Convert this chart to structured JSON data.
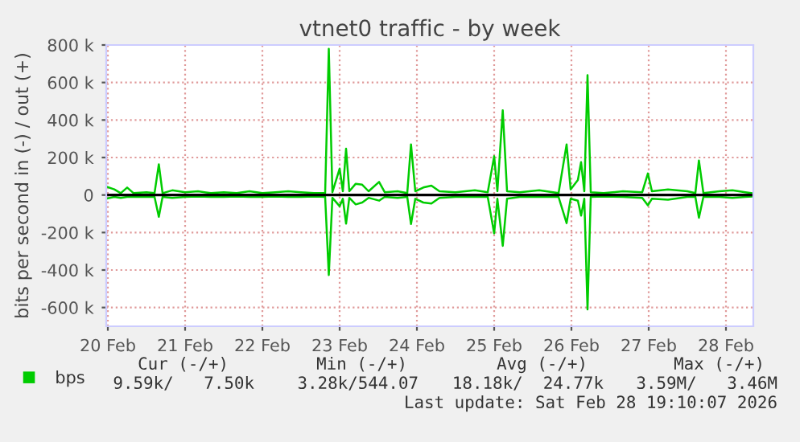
{
  "chart_data": {
    "type": "line",
    "title": "vtnet0 traffic - by week",
    "ylabel": "bits per second in (-) / out (+)",
    "x": [
      "2026-02-19T23:30",
      "2026-02-20T02:00",
      "2026-02-20T04:00",
      "2026-02-20T06:00",
      "2026-02-20T08:00",
      "2026-02-20T12:00",
      "2026-02-20T14:30",
      "2026-02-20T15:50",
      "2026-02-20T17:00",
      "2026-02-20T20:00",
      "2026-02-21T00:00",
      "2026-02-21T04:00",
      "2026-02-21T08:00",
      "2026-02-21T12:00",
      "2026-02-21T16:00",
      "2026-02-21T20:00",
      "2026-02-22T00:00",
      "2026-02-22T04:00",
      "2026-02-22T08:00",
      "2026-02-22T12:00",
      "2026-02-22T16:00",
      "2026-02-22T19:30",
      "2026-02-22T20:38",
      "2026-02-22T21:45",
      "2026-02-23T00:00",
      "2026-02-23T01:00",
      "2026-02-23T02:00",
      "2026-02-23T03:00",
      "2026-02-23T05:00",
      "2026-02-23T07:00",
      "2026-02-23T09:00",
      "2026-02-23T12:15",
      "2026-02-23T14:00",
      "2026-02-23T18:00",
      "2026-02-23T21:00",
      "2026-02-23T22:10",
      "2026-02-23T23:30",
      "2026-02-24T02:00",
      "2026-02-24T04:30",
      "2026-02-24T07:00",
      "2026-02-24T12:00",
      "2026-02-24T18:00",
      "2026-02-24T22:00",
      "2026-02-25T00:00",
      "2026-02-25T01:00",
      "2026-02-25T02:40",
      "2026-02-25T04:00",
      "2026-02-25T08:00",
      "2026-02-25T14:00",
      "2026-02-25T20:00",
      "2026-02-25T22:30",
      "2026-02-25T23:45",
      "2026-02-26T02:00",
      "2026-02-26T03:00",
      "2026-02-26T04:00",
      "2026-02-26T05:00",
      "2026-02-26T06:00",
      "2026-02-26T10:00",
      "2026-02-26T16:00",
      "2026-02-26T22:00",
      "2026-02-26T23:45",
      "2026-02-27T01:00",
      "2026-02-27T06:00",
      "2026-02-27T12:00",
      "2026-02-27T14:30",
      "2026-02-27T15:36",
      "2026-02-27T17:00",
      "2026-02-27T22:00",
      "2026-02-28T02:00",
      "2026-02-28T06:00",
      "2026-02-28T08:00"
    ],
    "series": [
      {
        "name": "bps",
        "color": "#00cc00",
        "values": [
          45000,
          30000,
          10000,
          40000,
          10000,
          15000,
          10000,
          164000,
          10000,
          25000,
          15000,
          20000,
          10000,
          15000,
          10000,
          20000,
          10000,
          15000,
          20000,
          15000,
          10000,
          10000,
          780000,
          15000,
          141000,
          20000,
          247000,
          20000,
          60000,
          55000,
          20000,
          70000,
          15000,
          20000,
          10000,
          270000,
          20000,
          40000,
          50000,
          20000,
          15000,
          25000,
          15000,
          207000,
          20000,
          452000,
          20000,
          15000,
          25000,
          10000,
          270000,
          30000,
          80000,
          175000,
          20000,
          639000,
          15000,
          10000,
          20000,
          15000,
          115000,
          20000,
          30000,
          20000,
          10000,
          184000,
          10000,
          20000,
          25000,
          15000,
          10000
        ]
      },
      {
        "color": "#00cc00",
        "values": [
          -20000,
          -10000,
          -15000,
          -10000,
          -10000,
          -10000,
          -10000,
          -116000,
          -10000,
          -15000,
          -10000,
          -8000,
          -10000,
          -10000,
          -8000,
          -10000,
          -10000,
          -8000,
          -10000,
          -10000,
          -8000,
          -10000,
          -427000,
          -15000,
          -60000,
          -20000,
          -153000,
          -15000,
          -50000,
          -40000,
          -15000,
          -30000,
          -10000,
          -15000,
          -10000,
          -155000,
          -20000,
          -40000,
          -45000,
          -15000,
          -10000,
          -10000,
          -10000,
          -205000,
          -20000,
          -271000,
          -20000,
          -10000,
          -10000,
          -10000,
          -150000,
          -20000,
          -30000,
          -110000,
          -20000,
          -610000,
          -10000,
          -8000,
          -10000,
          -15000,
          -55000,
          -20000,
          -25000,
          -10000,
          -10000,
          -121000,
          -10000,
          -10000,
          -15000,
          -10000,
          -8000
        ]
      }
    ],
    "xlim": [
      "2026-02-19T23:30",
      "2026-02-28T08:30"
    ],
    "xticks": [
      {
        "value": "2026-02-20",
        "label": "20 Feb"
      },
      {
        "value": "2026-02-21",
        "label": "21 Feb"
      },
      {
        "value": "2026-02-22",
        "label": "22 Feb"
      },
      {
        "value": "2026-02-23",
        "label": "23 Feb"
      },
      {
        "value": "2026-02-24",
        "label": "24 Feb"
      },
      {
        "value": "2026-02-25",
        "label": "25 Feb"
      },
      {
        "value": "2026-02-26",
        "label": "26 Feb"
      },
      {
        "value": "2026-02-27",
        "label": "27 Feb"
      },
      {
        "value": "2026-02-28",
        "label": "28 Feb"
      }
    ],
    "ylim": [
      -700000,
      800000
    ],
    "yticks": [
      {
        "value": -600000,
        "label": "-600 k"
      },
      {
        "value": -400000,
        "label": "-400 k"
      },
      {
        "value": -200000,
        "label": "-200 k"
      },
      0,
      {
        "value": 200000,
        "label": "200 k"
      },
      {
        "value": 400000,
        "label": "400 k"
      },
      {
        "value": 600000,
        "label": "600 k"
      },
      {
        "value": 800000,
        "label": "800 k"
      }
    ],
    "ref_lines": [
      {
        "axis": "y",
        "value": 0,
        "color": "#000000"
      }
    ],
    "grid": true,
    "legend": "bottom left",
    "marker": "none",
    "line_style": "solid",
    "annotations": [
      "Cur (-/+)",
      "Min (-/+)",
      "Avg (-/+)",
      "Max (-/+)",
      "9.59k/   7.50k",
      "3.28k/544.07",
      "18.18k/  24.77k",
      "3.59M/   3.46M",
      "Last update: Sat Feb 28 19:10:07 2026"
    ]
  }
}
